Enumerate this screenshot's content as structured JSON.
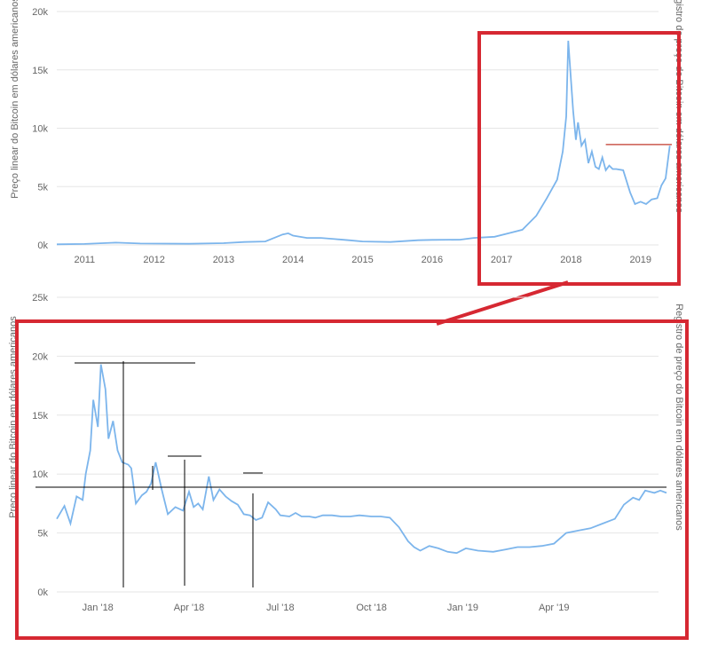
{
  "colors": {
    "line": "#7cb5ec",
    "grid": "#e6e6e6",
    "highlight_box": "#d62832",
    "annotation": "#000000",
    "resistance_marker": "#c0392b",
    "text": "#666666"
  },
  "chart_data": [
    {
      "type": "line",
      "title": "",
      "ylabel": "Preço linear do Bitcoin em dólares americanos",
      "ylabel_right": "Registro de preço do Bitcoin em dólares americanos",
      "xlim": [
        2010.6,
        2019.45
      ],
      "ylim": [
        0,
        20000
      ],
      "grid": true,
      "y_ticks": [
        {
          "value": 0,
          "label": "0k"
        },
        {
          "value": 5000,
          "label": "5k"
        },
        {
          "value": 10000,
          "label": "10k"
        },
        {
          "value": 15000,
          "label": "15k"
        },
        {
          "value": 20000,
          "label": "20k"
        }
      ],
      "x_ticks": [
        {
          "value": 2011,
          "label": "2011"
        },
        {
          "value": 2012,
          "label": "2012"
        },
        {
          "value": 2013,
          "label": "2013"
        },
        {
          "value": 2014,
          "label": "2014"
        },
        {
          "value": 2015,
          "label": "2015"
        },
        {
          "value": 2016,
          "label": "2016"
        },
        {
          "value": 2017,
          "label": "2017"
        },
        {
          "value": 2018,
          "label": "2018"
        },
        {
          "value": 2019,
          "label": "2019"
        }
      ],
      "series": [
        {
          "x": [
            2010.6,
            2011.0,
            2011.45,
            2011.8,
            2012.5,
            2013.0,
            2013.3,
            2013.6,
            2013.85,
            2013.93,
            2014.0,
            2014.2,
            2014.4,
            2014.6,
            2014.8,
            2015.0,
            2015.4,
            2015.8,
            2016.0,
            2016.4,
            2016.6,
            2016.9,
            2017.1,
            2017.3,
            2017.5,
            2017.65,
            2017.8,
            2017.88,
            2017.93,
            2017.96,
            2018.0,
            2018.03,
            2018.07,
            2018.1,
            2018.15,
            2018.2,
            2018.25,
            2018.3,
            2018.35,
            2018.4,
            2018.45,
            2018.5,
            2018.55,
            2018.6,
            2018.65,
            2018.75,
            2018.85,
            2018.92,
            2019.0,
            2019.08,
            2019.16,
            2019.24,
            2019.3,
            2019.36,
            2019.42
          ],
          "y": [
            50,
            80,
            200,
            120,
            100,
            150,
            250,
            300,
            900,
            1000,
            800,
            600,
            600,
            500,
            400,
            300,
            250,
            400,
            430,
            450,
            600,
            700,
            1000,
            1300,
            2500,
            4000,
            5600,
            8000,
            11000,
            17500,
            14000,
            11500,
            9000,
            10500,
            8500,
            9000,
            7000,
            8000,
            6700,
            6500,
            7500,
            6400,
            6800,
            6500,
            6500,
            6400,
            4500,
            3500,
            3700,
            3500,
            3900,
            4000,
            5100,
            5700,
            8500
          ]
        }
      ],
      "annotations": {
        "resistance_level": 8600
      }
    },
    {
      "type": "line",
      "title": "",
      "ylabel": "Preço linear do Bitcoin em dólares americanos",
      "ylabel_right": "Registro de preço do Bitcoin em dólares americanos",
      "xlim": [
        -1.35,
        18.7
      ],
      "ylim": [
        0,
        25000
      ],
      "grid": true,
      "y_ticks": [
        {
          "value": 0,
          "label": "0k"
        },
        {
          "value": 5000,
          "label": "5k"
        },
        {
          "value": 10000,
          "label": "10k"
        },
        {
          "value": 15000,
          "label": "15k"
        },
        {
          "value": 20000,
          "label": "20k"
        },
        {
          "value": 25000,
          "label": "25k"
        }
      ],
      "x_ticks": [
        {
          "value": 0,
          "label": "Jan '18"
        },
        {
          "value": 3,
          "label": "Apr '18"
        },
        {
          "value": 6,
          "label": "Jul '18"
        },
        {
          "value": 9,
          "label": "Oct '18"
        },
        {
          "value": 12,
          "label": "Jan '19"
        },
        {
          "value": 15,
          "label": "Apr '19"
        }
      ],
      "series": [
        {
          "x": [
            -1.35,
            -1.1,
            -0.9,
            -0.7,
            -0.5,
            -0.4,
            -0.25,
            -0.15,
            0.0,
            0.1,
            0.25,
            0.35,
            0.5,
            0.65,
            0.8,
            1.0,
            1.1,
            1.25,
            1.45,
            1.6,
            1.75,
            1.9,
            2.1,
            2.3,
            2.55,
            2.8,
            3.0,
            3.15,
            3.3,
            3.45,
            3.65,
            3.8,
            4.0,
            4.2,
            4.4,
            4.6,
            4.8,
            5.0,
            5.2,
            5.4,
            5.6,
            5.85,
            6.0,
            6.3,
            6.5,
            6.7,
            6.95,
            7.15,
            7.4,
            7.7,
            8.0,
            8.3,
            8.6,
            9.0,
            9.3,
            9.6,
            9.9,
            10.2,
            10.4,
            10.6,
            10.9,
            11.2,
            11.5,
            11.8,
            12.1,
            12.5,
            13.0,
            13.4,
            13.8,
            14.2,
            14.6,
            15.0,
            15.4,
            15.8,
            16.2,
            16.6,
            17.0,
            17.3,
            17.6,
            17.8,
            18.0,
            18.3,
            18.5,
            18.7
          ],
          "y": [
            6200,
            7300,
            5800,
            8100,
            7800,
            10000,
            12000,
            16300,
            14000,
            19300,
            17200,
            13000,
            14500,
            12000,
            11000,
            10800,
            10500,
            7500,
            8200,
            8500,
            9200,
            11000,
            8700,
            6600,
            7200,
            6900,
            8500,
            7200,
            7500,
            7000,
            9800,
            7800,
            8700,
            8100,
            7700,
            7400,
            6600,
            6500,
            6100,
            6300,
            7600,
            7000,
            6500,
            6400,
            6700,
            6400,
            6400,
            6300,
            6500,
            6500,
            6400,
            6400,
            6500,
            6400,
            6400,
            6300,
            5500,
            4300,
            3800,
            3500,
            3900,
            3700,
            3400,
            3300,
            3700,
            3500,
            3400,
            3600,
            3800,
            3800,
            3900,
            4100,
            5000,
            5200,
            5400,
            5800,
            6200,
            7400,
            8000,
            7800,
            8600,
            8400,
            8600,
            8400
          ]
        }
      ]
    }
  ]
}
